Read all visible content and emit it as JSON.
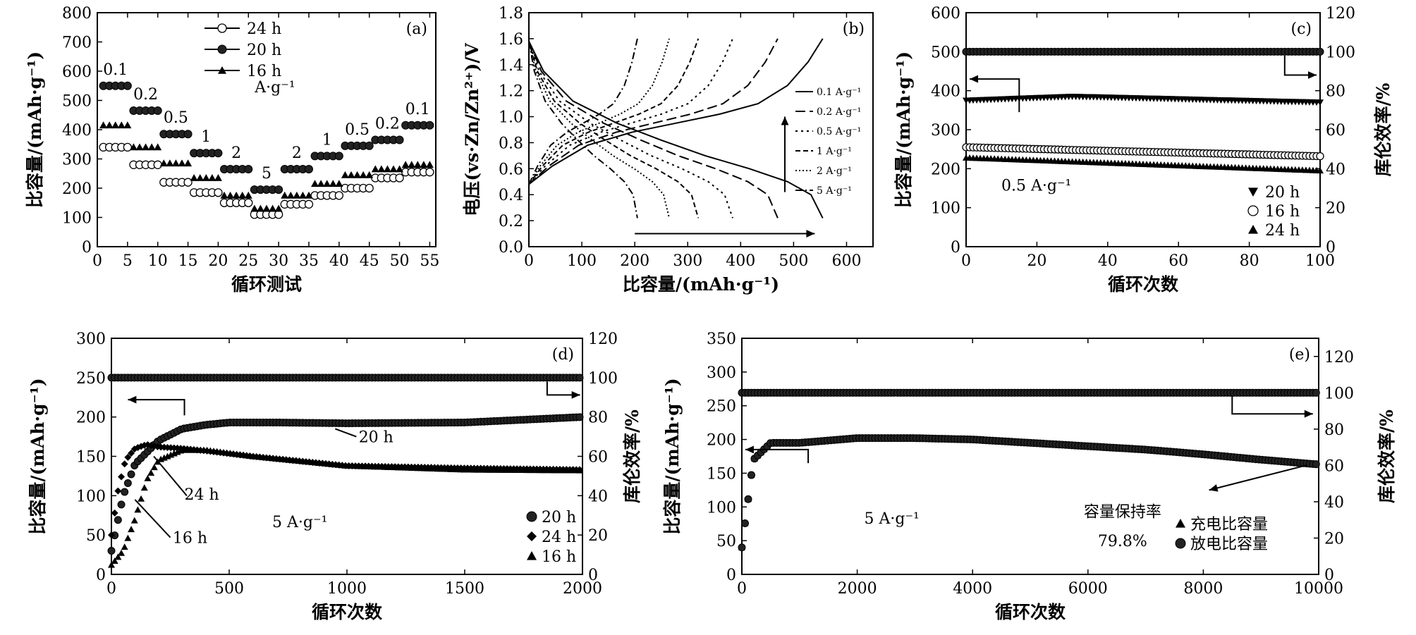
{
  "chart_data": [
    {
      "id": "a",
      "type": "scatter",
      "panel_label": "(a)",
      "xlabel": "循环测试",
      "ylabel": "比容量/(mAh·g⁻¹)",
      "xlim": [
        0,
        56
      ],
      "ylim": [
        0,
        800
      ],
      "xticks": [
        0,
        5,
        10,
        15,
        20,
        25,
        30,
        35,
        40,
        45,
        50,
        55
      ],
      "yticks": [
        0,
        100,
        200,
        300,
        400,
        500,
        600,
        700,
        800
      ],
      "legend_position": "top-left",
      "unit_label": "A·g⁻¹",
      "rate_labels": [
        "0.1",
        "0.2",
        "0.5",
        "1",
        "2",
        "5",
        "2",
        "1",
        "0.5",
        "0.2",
        "0.1"
      ],
      "rate_steps": [
        0.1,
        0.2,
        0.5,
        1,
        2,
        5,
        2,
        1,
        0.5,
        0.2,
        0.1
      ],
      "series": [
        {
          "name": "24 h",
          "marker": "open-circle",
          "values": [
            340,
            280,
            220,
            185,
            150,
            110,
            145,
            175,
            200,
            235,
            255
          ]
        },
        {
          "name": "20 h",
          "marker": "filled-circle",
          "values": [
            550,
            465,
            385,
            320,
            265,
            195,
            265,
            310,
            345,
            365,
            415
          ]
        },
        {
          "name": "16 h",
          "marker": "triangle",
          "values": [
            415,
            340,
            285,
            235,
            175,
            130,
            175,
            215,
            245,
            265,
            280
          ]
        }
      ]
    },
    {
      "id": "b",
      "type": "line",
      "panel_label": "(b)",
      "xlabel": "比容量/(mAh·g⁻¹)",
      "ylabel": "电压(vs·Zn/Zn²⁺)/V",
      "xlim": [
        0,
        650
      ],
      "ylim": [
        0,
        1.8
      ],
      "xticks": [
        0,
        100,
        200,
        300,
        400,
        500,
        600
      ],
      "yticks": [
        0,
        0.2,
        0.4,
        0.6,
        0.8,
        1.0,
        1.2,
        1.4,
        1.6,
        1.8
      ],
      "legend_position": "right",
      "series": [
        {
          "name": "0.1 A·g⁻¹",
          "dash": "solid",
          "capacity": 555
        },
        {
          "name": "0.2 A·g⁻¹",
          "dash": "long-dash",
          "capacity": 470
        },
        {
          "name": "0.5 A·g⁻¹",
          "dash": "dot",
          "capacity": 385
        },
        {
          "name": "1 A·g⁻¹",
          "dash": "short-dash",
          "capacity": 320
        },
        {
          "name": "2 A·g⁻¹",
          "dash": "fine-dot",
          "capacity": 265
        },
        {
          "name": "5 A·g⁻¹",
          "dash": "dash-dot",
          "capacity": 205
        }
      ]
    },
    {
      "id": "c",
      "type": "scatter",
      "panel_label": "(c)",
      "xlabel": "循环次数",
      "ylabel": "比容量/(mAh·g⁻¹)",
      "y2label": "库伦效率/%",
      "xlim": [
        0,
        100
      ],
      "ylim": [
        0,
        600
      ],
      "y2lim": [
        0,
        120
      ],
      "xticks": [
        0,
        20,
        40,
        60,
        80,
        100
      ],
      "yticks": [
        0,
        100,
        200,
        300,
        400,
        500,
        600
      ],
      "y2ticks": [
        0,
        20,
        40,
        60,
        80,
        100,
        120
      ],
      "annotation": "0.5 A·g⁻¹",
      "legend_position": "bottom-right",
      "series": [
        {
          "name": "20 h",
          "marker": "down-triangle",
          "x": [
            0,
            30,
            100
          ],
          "values": [
            375,
            385,
            370
          ]
        },
        {
          "name": "16 h",
          "marker": "open-circle",
          "x": [
            0,
            100
          ],
          "values": [
            255,
            232
          ]
        },
        {
          "name": "24 h",
          "marker": "triangle",
          "x": [
            0,
            100
          ],
          "values": [
            228,
            195
          ]
        },
        {
          "name": "coulombic efficiency",
          "marker": "filled-circle",
          "axis": "y2",
          "x": [
            0,
            100
          ],
          "values": [
            100,
            100
          ]
        }
      ]
    },
    {
      "id": "d",
      "type": "scatter",
      "panel_label": "(d)",
      "xlabel": "循环次数",
      "ylabel": "比容量/(mAh·g⁻¹)",
      "y2label": "库伦效率/%",
      "xlim": [
        0,
        2000
      ],
      "ylim": [
        0,
        300
      ],
      "y2lim": [
        0,
        120
      ],
      "xticks": [
        0,
        500,
        1000,
        1500,
        2000
      ],
      "yticks": [
        0,
        50,
        100,
        150,
        200,
        250,
        300
      ],
      "y2ticks": [
        0,
        20,
        40,
        60,
        80,
        100,
        120
      ],
      "annotation": "5 A·g⁻¹",
      "curve_labels": [
        "20 h",
        "24 h",
        "16 h"
      ],
      "legend_position": "bottom-right",
      "series": [
        {
          "name": "20 h",
          "marker": "filled-circle",
          "x": [
            0,
            50,
            100,
            200,
            300,
            400,
            500,
            700,
            1000,
            1500,
            2000
          ],
          "values": [
            30,
            100,
            140,
            170,
            185,
            190,
            193,
            193,
            192,
            193,
            200
          ]
        },
        {
          "name": "24 h",
          "marker": "diamond",
          "x": [
            0,
            30,
            60,
            100,
            150,
            200,
            300,
            400,
            600,
            1000,
            1500,
            2000
          ],
          "values": [
            50,
            110,
            145,
            160,
            165,
            162,
            160,
            157,
            150,
            138,
            135,
            133
          ]
        },
        {
          "name": "16 h",
          "marker": "triangle",
          "x": [
            0,
            50,
            100,
            150,
            200,
            300,
            400,
            600,
            1000,
            1500,
            2000
          ],
          "values": [
            12,
            30,
            70,
            120,
            145,
            158,
            158,
            150,
            138,
            133,
            132
          ]
        },
        {
          "name": "coulombic efficiency",
          "marker": "filled-circle",
          "axis": "y2",
          "x": [
            0,
            2000
          ],
          "values": [
            100,
            100
          ]
        }
      ]
    },
    {
      "id": "e",
      "type": "scatter",
      "panel_label": "(e)",
      "xlabel": "循环次数",
      "ylabel": "比容量/(mAh·g⁻¹)",
      "y2label": "库伦效率/%",
      "xlim": [
        0,
        10000
      ],
      "ylim": [
        0,
        350
      ],
      "y2lim": [
        0,
        130
      ],
      "xticks": [
        0,
        2000,
        4000,
        6000,
        8000,
        10000
      ],
      "yticks": [
        0,
        50,
        100,
        150,
        200,
        250,
        300,
        350
      ],
      "y2ticks": [
        0,
        20,
        40,
        60,
        80,
        100,
        120
      ],
      "annotation": "5 A·g⁻¹",
      "retention_label": "容量保持率",
      "retention_value": "79.8%",
      "legend_position": "bottom-right",
      "series": [
        {
          "name": "充电比容量",
          "marker": "triangle",
          "x": [
            0,
            200,
            500,
            1000,
            2000,
            3000,
            4000,
            5000,
            6000,
            7000,
            8000,
            9000,
            10000
          ],
          "values": [
            40,
            170,
            195,
            195,
            202,
            202,
            200,
            195,
            190,
            185,
            178,
            170,
            163
          ]
        },
        {
          "name": "放电比容量",
          "marker": "filled-circle",
          "x": [
            0,
            200,
            500,
            1000,
            2000,
            3000,
            4000,
            5000,
            6000,
            7000,
            8000,
            9000,
            10000
          ],
          "values": [
            40,
            170,
            195,
            195,
            202,
            202,
            200,
            195,
            190,
            185,
            178,
            170,
            163
          ]
        },
        {
          "name": "coulombic efficiency",
          "marker": "filled-circle",
          "axis": "y2",
          "x": [
            0,
            10000
          ],
          "values": [
            100,
            100
          ]
        }
      ]
    }
  ]
}
